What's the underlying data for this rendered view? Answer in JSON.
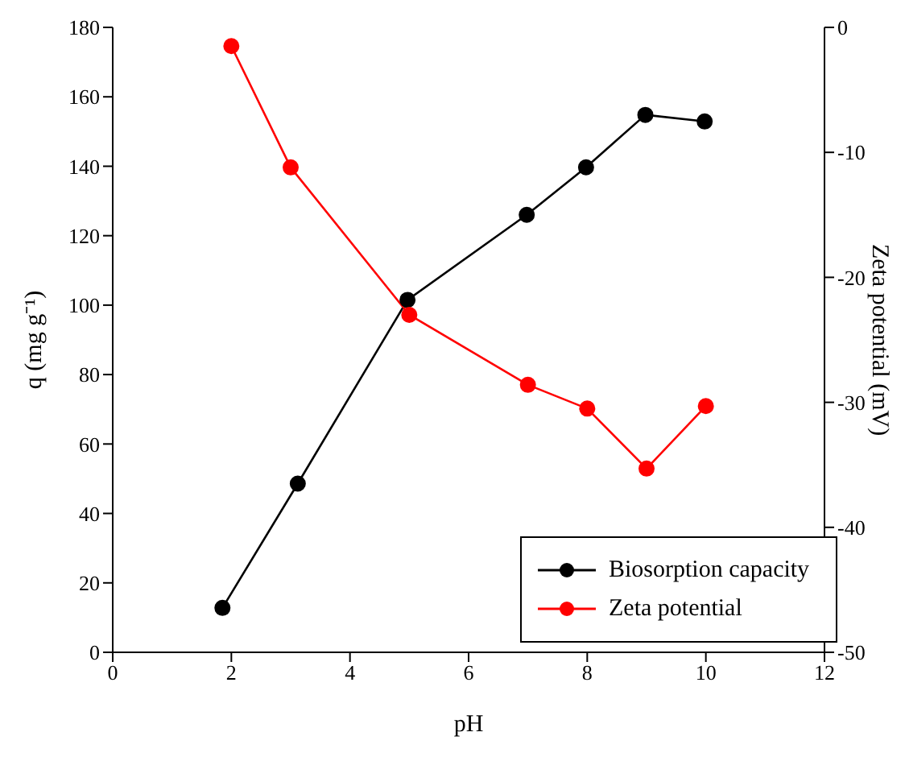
{
  "chart_data": {
    "type": "line",
    "xlabel": "pH",
    "ylabel": "q (mg g⁻¹)",
    "y2label": "Zeta potential (mV)",
    "xlim": [
      0,
      12
    ],
    "xticks": [
      0,
      2,
      4,
      6,
      8,
      10,
      12
    ],
    "ylim": [
      0,
      180
    ],
    "yticks": [
      0,
      20,
      40,
      60,
      80,
      100,
      120,
      140,
      160,
      180
    ],
    "y2lim": [
      -50,
      0
    ],
    "y2ticks": [
      -50,
      -40,
      -30,
      -20,
      -10,
      0
    ],
    "marker": "circle",
    "legend": "bottom right",
    "grid": false,
    "series": [
      {
        "name": "Biosorption capacity",
        "color": "#000000",
        "x": [
          1.85,
          3.12,
          4.97,
          6.98,
          7.98,
          8.98,
          9.98
        ],
        "values": [
          12.8,
          48.6,
          101.5,
          126,
          139.7,
          154.8,
          152.9
        ]
      },
      {
        "name": "Zeta potential",
        "color": "#ff0000",
        "axis": "y2",
        "x": [
          2,
          3,
          5,
          7,
          8,
          9,
          10
        ],
        "values": [
          -1.5,
          -11.2,
          -23.0,
          -28.6,
          -30.5,
          -35.3,
          -30.3
        ]
      }
    ]
  }
}
